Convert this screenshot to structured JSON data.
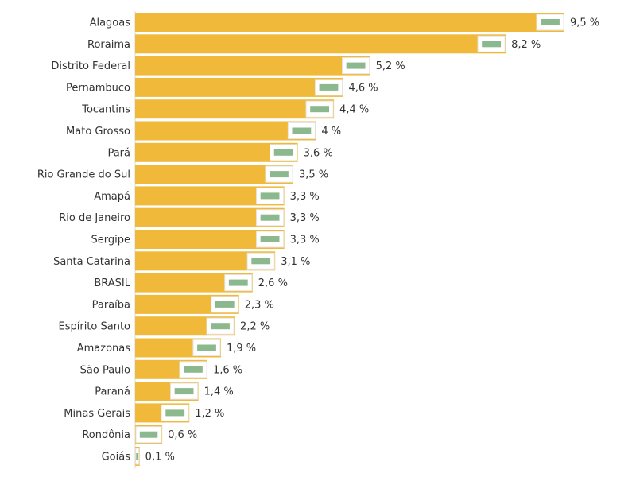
{
  "chart_data": {
    "type": "bar",
    "orientation": "horizontal",
    "bar_color": "#F0B93A",
    "xlim": [
      0,
      9.5
    ],
    "categories": [
      "Alagoas",
      "Roraima",
      "Distrito Federal",
      "Pernambuco",
      "Tocantins",
      "Mato Grosso",
      "Pará",
      "Rio Grande do Sul",
      "Amapá",
      "Rio de Janeiro",
      "Sergipe",
      "Santa Catarina",
      "BRASIL",
      "Paraíba",
      "Espírito Santo",
      "Amazonas",
      "São Paulo",
      "Paraná",
      "Minas Gerais",
      "Rondônia",
      "Goiás"
    ],
    "values": [
      9.5,
      8.2,
      5.2,
      4.6,
      4.4,
      4.0,
      3.6,
      3.5,
      3.3,
      3.3,
      3.3,
      3.1,
      2.6,
      2.3,
      2.2,
      1.9,
      1.6,
      1.4,
      1.2,
      0.6,
      0.1
    ],
    "value_labels": [
      "9,5 %",
      "8,2 %",
      "5,2 %",
      "4,6 %",
      "4,4 %",
      "4 %",
      "3,6 %",
      "3,5 %",
      "3,3 %",
      "3,3 %",
      "3,3 %",
      "3,1 %",
      "2,6 %",
      "2,3 %",
      "2,2 %",
      "1,9 %",
      "1,6 %",
      "1,4 %",
      "1,2 %",
      "0,6 %",
      "0,1 %"
    ],
    "flag_icons": [
      "alagoas-flag-icon",
      "roraima-flag-icon",
      "distrito-federal-flag-icon",
      "pernambuco-flag-icon",
      "tocantins-flag-icon",
      "mato-grosso-flag-icon",
      "para-flag-icon",
      "rio-grande-do-sul-flag-icon",
      "amapa-flag-icon",
      "rio-de-janeiro-flag-icon",
      "sergipe-flag-icon",
      "santa-catarina-flag-icon",
      "brasil-flag-icon",
      "paraiba-flag-icon",
      "espirito-santo-flag-icon",
      "amazonas-flag-icon",
      "sao-paulo-flag-icon",
      "parana-flag-icon",
      "minas-gerais-flag-icon",
      "rondonia-flag-icon",
      "goias-flag-icon"
    ],
    "title": "",
    "xlabel": "",
    "ylabel": "",
    "grid": false,
    "legend": "none"
  }
}
